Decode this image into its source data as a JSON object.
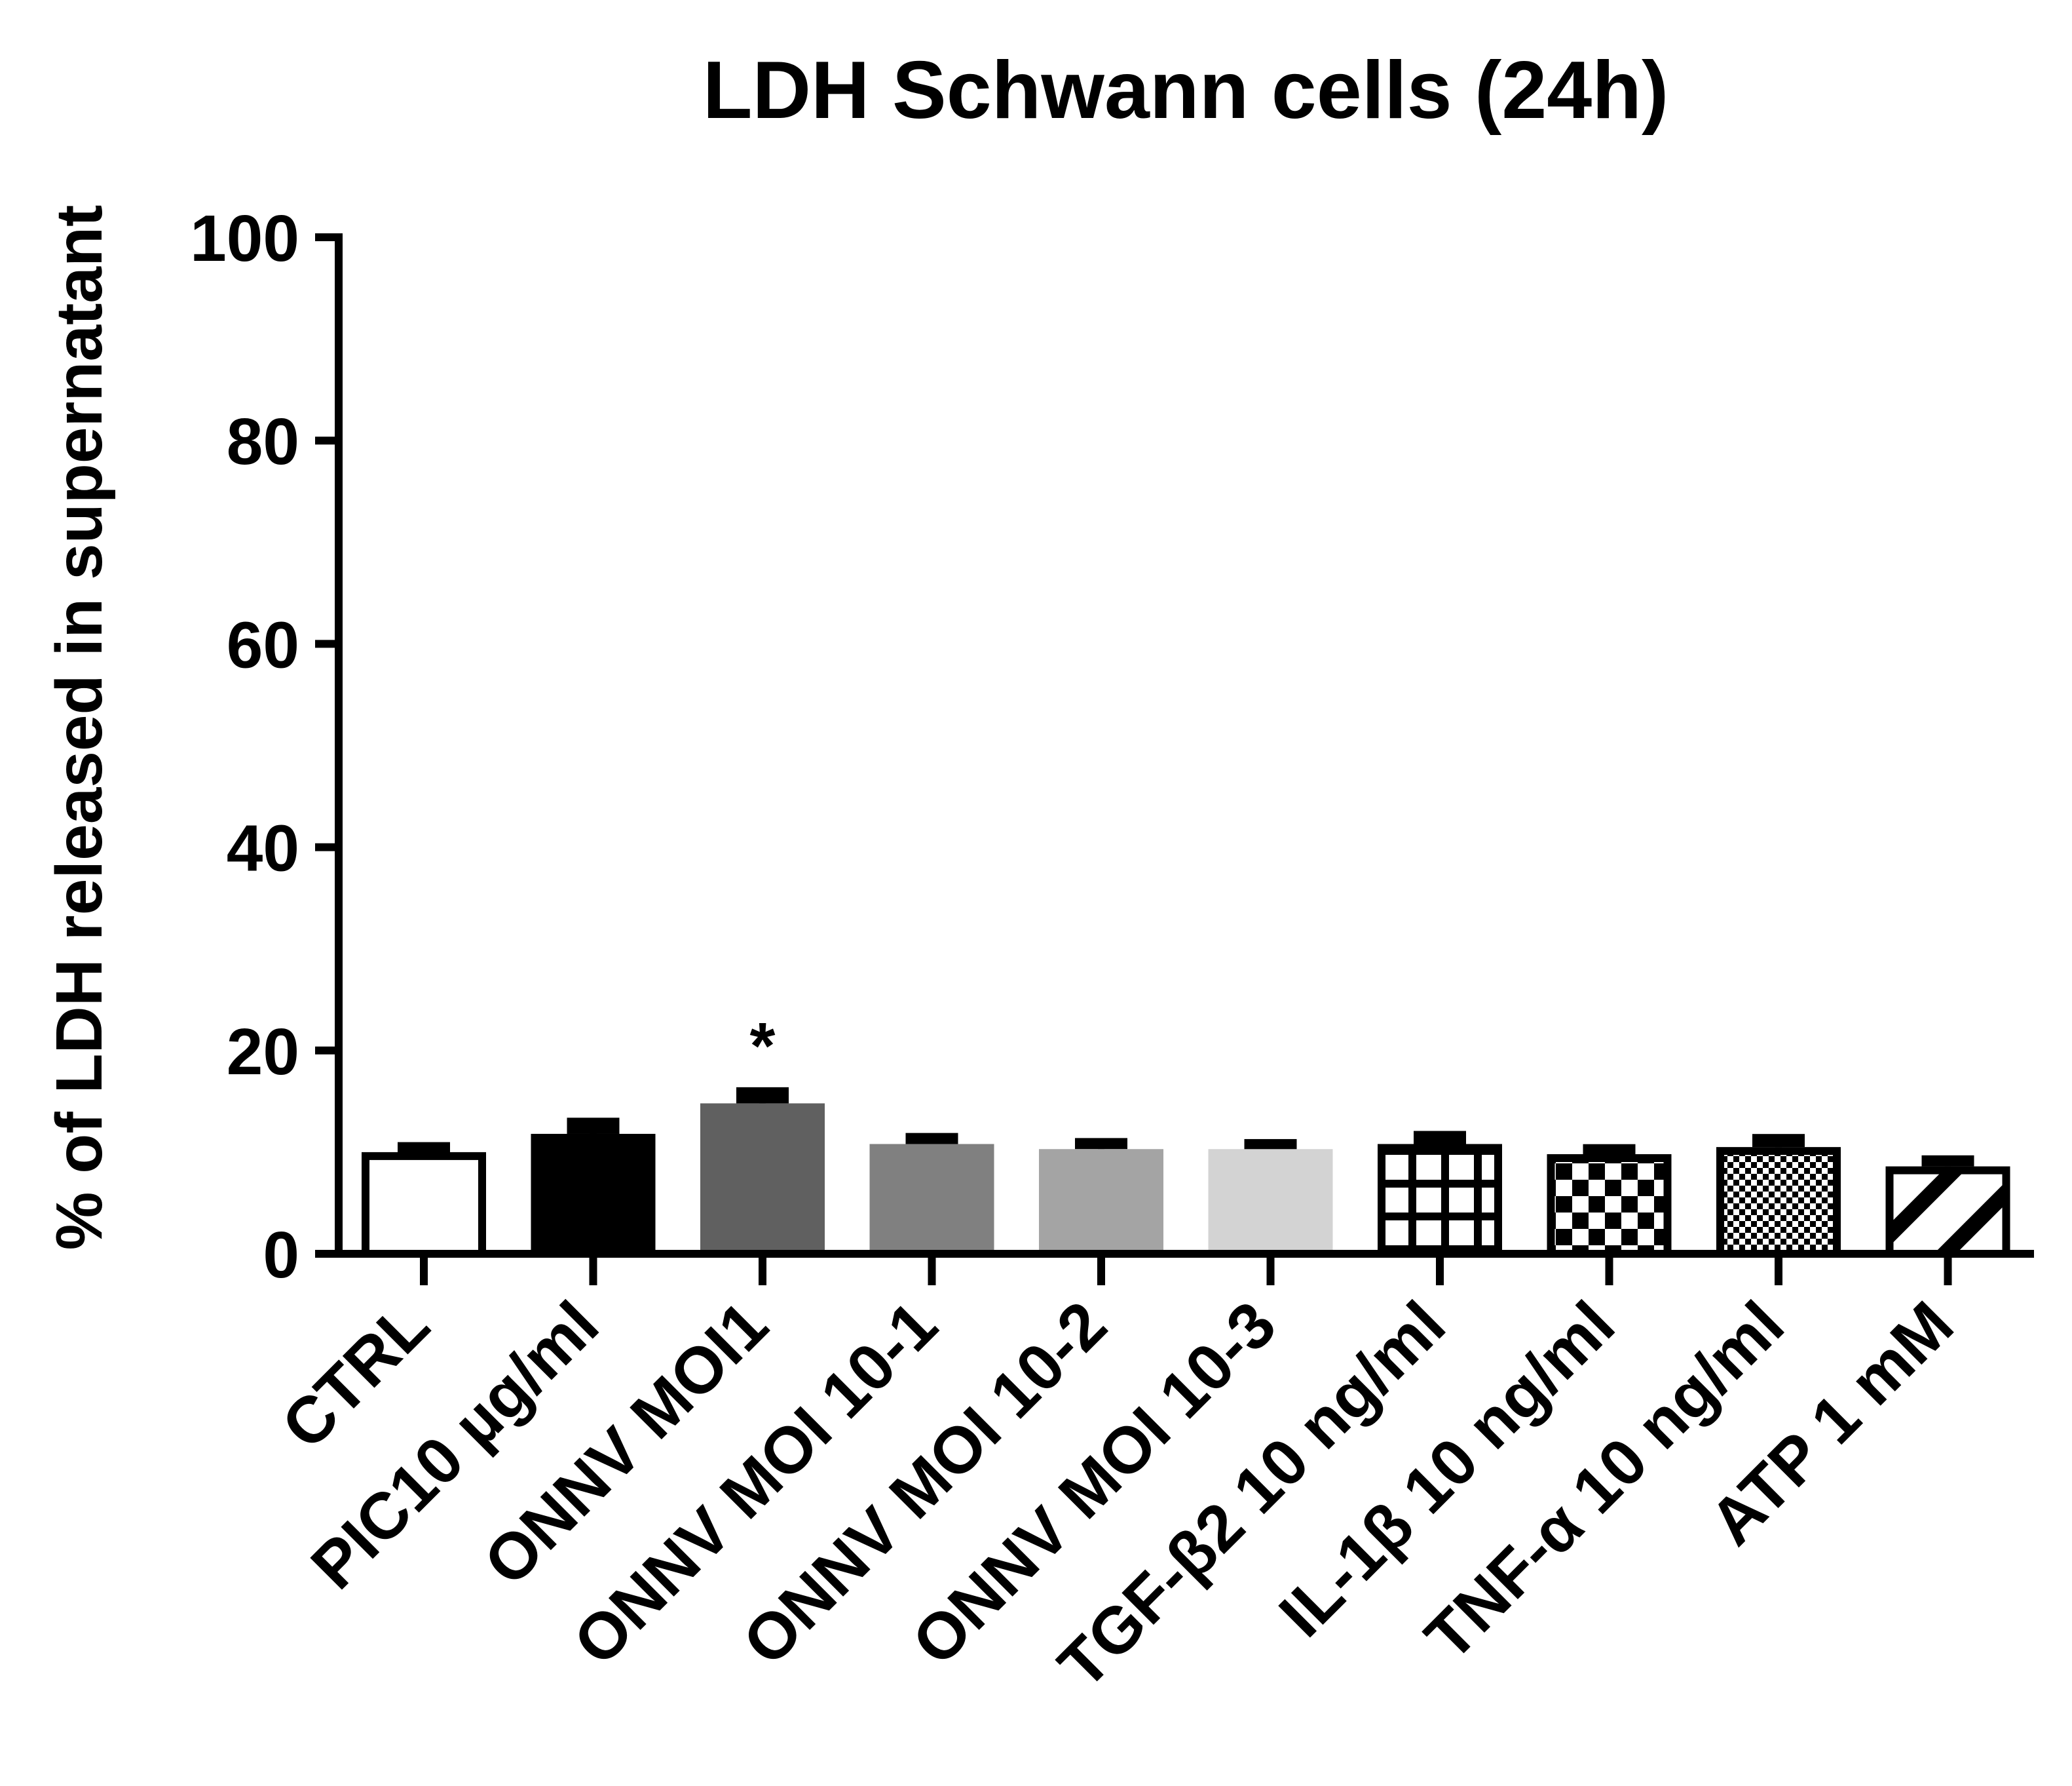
{
  "chart_data": {
    "type": "bar",
    "title": "LDH Schwann cells (24h)",
    "ylabel": "% of LDH released in supernatant",
    "xlabel": "",
    "ylim": [
      0,
      100
    ],
    "yticks": [
      0,
      20,
      40,
      60,
      80,
      100
    ],
    "ytick_labels": [
      "0",
      "20",
      "40",
      "60",
      "80",
      "100"
    ],
    "grid": false,
    "legend": "none",
    "categories": [
      "CTRL",
      "PIC10 µg/ml",
      "ONNV MOI1",
      "ONNV MOI 10-1",
      "ONNV MOI 10-2",
      "ONNV MOI 10-3",
      "TGF-β2 10 ng/ml",
      "IL-1β 10 ng/ml",
      "TNF-α 10 ng/ml",
      "ATP 1 mM"
    ],
    "values": [
      10.0,
      11.8,
      14.8,
      10.8,
      10.3,
      10.3,
      10.8,
      9.8,
      10.5,
      8.6
    ],
    "errors": [
      0.6,
      1.2,
      1.2,
      0.7,
      0.7,
      0.6,
      0.9,
      0.6,
      0.9,
      0.7
    ],
    "fills": [
      "white",
      "#000000",
      "#606060",
      "#808080",
      "#a4a4a4",
      "#d3d3d3",
      "grid",
      "checker",
      "finecheck",
      "diagonal"
    ],
    "annotations": [
      {
        "category_index": 2,
        "text": "*"
      }
    ]
  }
}
